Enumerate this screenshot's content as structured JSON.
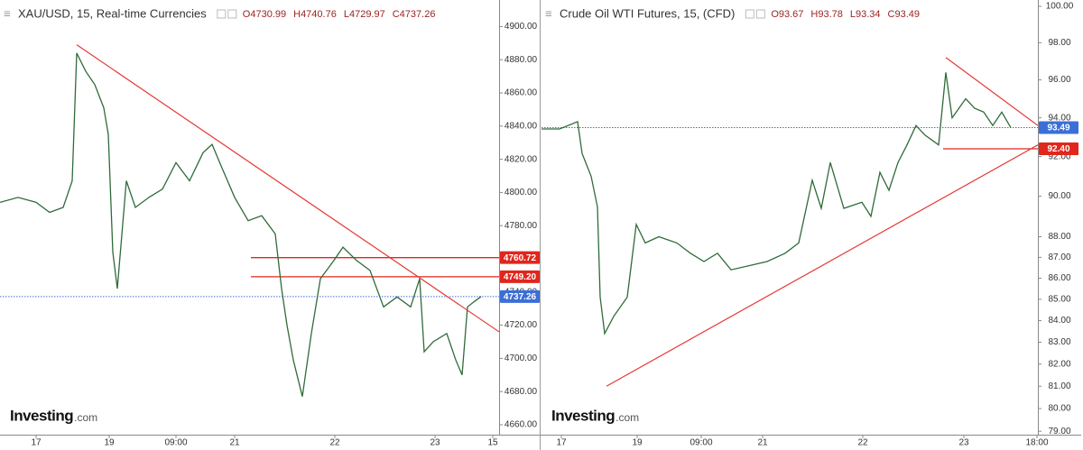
{
  "chart_data": [
    {
      "type": "line",
      "title": "XAU/USD, 15, Real-time Currencies",
      "ohlc": [
        "O4730.99",
        "H4740.76",
        "L4729.97",
        "C4737.26"
      ],
      "watermark": [
        "Investing",
        ".com"
      ],
      "series": [
        {
          "color": "#2f6b3a",
          "x": [
            0,
            20,
            40,
            55,
            70,
            80,
            85,
            95,
            105,
            115,
            120,
            125,
            130,
            140,
            150,
            165,
            180,
            195,
            210,
            225,
            235,
            245,
            260,
            275,
            290,
            305,
            312,
            318,
            325,
            335,
            345,
            355,
            370,
            380,
            395,
            410,
            425,
            440,
            455,
            465,
            470,
            480,
            495,
            505,
            512,
            518,
            525,
            533
          ],
          "values": [
            4794,
            4797,
            4794,
            4788,
            4791,
            4807,
            4884,
            4873,
            4865,
            4851,
            4835,
            4764,
            4742,
            4807,
            4791,
            4797,
            4802,
            4818,
            4807,
            4824,
            4829,
            4816,
            4797,
            4783,
            4786,
            4775,
            4742,
            4720,
            4699,
            4677,
            4715,
            4748,
            4759,
            4767,
            4759,
            4753,
            4731,
            4737,
            4731,
            4748,
            4704,
            4710,
            4715,
            4699,
            4690,
            4731,
            4734,
            4737.26
          ]
        }
      ],
      "xlim": [
        0,
        553
      ],
      "xticks": [
        {
          "value": 40,
          "label": "17"
        },
        {
          "value": 121,
          "label": "19"
        },
        {
          "value": 195,
          "label": "09:00"
        },
        {
          "value": 260,
          "label": "21"
        },
        {
          "value": 371,
          "label": "22"
        },
        {
          "value": 482,
          "label": "23"
        },
        {
          "value": 546,
          "label": "15"
        }
      ],
      "ylim": [
        4654,
        4916
      ],
      "yticks": [
        {
          "value": 4660,
          "label": "4660.00"
        },
        {
          "value": 4680,
          "label": "4680.00"
        },
        {
          "value": 4700,
          "label": "4700.00"
        },
        {
          "value": 4720,
          "label": "4720.00"
        },
        {
          "value": 4740,
          "label": "4740.00"
        },
        {
          "value": 4760,
          "label": "4760.00"
        },
        {
          "value": 4780,
          "label": "4780.00"
        },
        {
          "value": 4800,
          "label": "4800.00"
        },
        {
          "value": 4820,
          "label": "4820.00"
        },
        {
          "value": 4840,
          "label": "4840.00"
        },
        {
          "value": 4860,
          "label": "4860.00"
        },
        {
          "value": 4880,
          "label": "4880.00"
        },
        {
          "value": 4900,
          "label": "4900.00"
        }
      ],
      "log_scale": false,
      "price_levels": [
        {
          "value": 4760.72,
          "color": "#e0261d",
          "line_from": 278
        },
        {
          "value": 4749.2,
          "label": "4749.20",
          "color": "#e0261d",
          "line_from": 278
        },
        {
          "value": 4737.26,
          "color": "#3b6fd8",
          "line_from": 0
        }
      ],
      "trend_lines": [
        {
          "x": [
            85,
            553
          ],
          "y": [
            4889,
            4716
          ],
          "color": "#e53935"
        }
      ]
    },
    {
      "type": "line",
      "title": "Crude Oil WTI Futures, 15, (CFD)",
      "ohlc": [
        "O93.67",
        "H93.78",
        "L93.34",
        "C93.49"
      ],
      "watermark": [
        "Investing",
        ".com"
      ],
      "series": [
        {
          "color": "#2f6b3a",
          "x": [
            0,
            20,
            40,
            45,
            55,
            62,
            65,
            70,
            80,
            95,
            105,
            115,
            130,
            150,
            165,
            180,
            195,
            210,
            230,
            250,
            270,
            285,
            300,
            310,
            320,
            335,
            355,
            365,
            375,
            385,
            395,
            405,
            415,
            425,
            440,
            448,
            455,
            470,
            480,
            490,
            500,
            510,
            520
          ],
          "values": [
            93.42,
            93.42,
            93.8,
            92.16,
            91.0,
            89.47,
            85.1,
            83.4,
            84.2,
            85.1,
            88.6,
            87.7,
            88.0,
            87.7,
            87.2,
            86.8,
            87.2,
            86.4,
            86.6,
            86.8,
            87.2,
            87.7,
            90.8,
            89.4,
            91.7,
            89.4,
            89.7,
            89.0,
            91.2,
            90.3,
            91.7,
            92.6,
            93.6,
            93.1,
            92.6,
            96.4,
            94.0,
            95.0,
            94.5,
            94.3,
            93.6,
            94.3,
            93.49
          ]
        }
      ],
      "xlim": [
        0,
        550
      ],
      "xticks": [
        {
          "value": 22,
          "label": "17"
        },
        {
          "value": 106,
          "label": "19"
        },
        {
          "value": 177,
          "label": "09:00"
        },
        {
          "value": 245,
          "label": "21"
        },
        {
          "value": 356,
          "label": "22"
        },
        {
          "value": 468,
          "label": "23"
        },
        {
          "value": 549,
          "label": "18:00"
        }
      ],
      "ylim": [
        78.85,
        100.35
      ],
      "yticks": [
        {
          "value": 79,
          "label": "79.00"
        },
        {
          "value": 80,
          "label": "80.00"
        },
        {
          "value": 81,
          "label": "81.00"
        },
        {
          "value": 82,
          "label": "82.00"
        },
        {
          "value": 83,
          "label": "83.00"
        },
        {
          "value": 84,
          "label": "84.00"
        },
        {
          "value": 85,
          "label": "85.00"
        },
        {
          "value": 86,
          "label": "86.00"
        },
        {
          "value": 87,
          "label": "87.00"
        },
        {
          "value": 88,
          "label": "88.00"
        },
        {
          "value": 90,
          "label": "90.00"
        },
        {
          "value": 92,
          "label": "92.00"
        },
        {
          "value": 94,
          "label": "94.00"
        },
        {
          "value": 96,
          "label": "96.00"
        },
        {
          "value": 98,
          "label": "98.00"
        },
        {
          "value": 100,
          "label": "100.00"
        }
      ],
      "log_scale": true,
      "price_levels": [
        {
          "value": 93.49,
          "color": "#3b6fd8",
          "line_from": 0
        },
        {
          "value": 92.4,
          "label": "92.40",
          "color": "#e0261d",
          "line_from": 445
        }
      ],
      "trend_lines": [
        {
          "x": [
            72,
            550
          ],
          "y": [
            81.0,
            92.6
          ],
          "color": "#e53935"
        },
        {
          "x": [
            448,
            550
          ],
          "y": [
            97.2,
            93.6
          ],
          "color": "#e53935"
        }
      ]
    }
  ]
}
